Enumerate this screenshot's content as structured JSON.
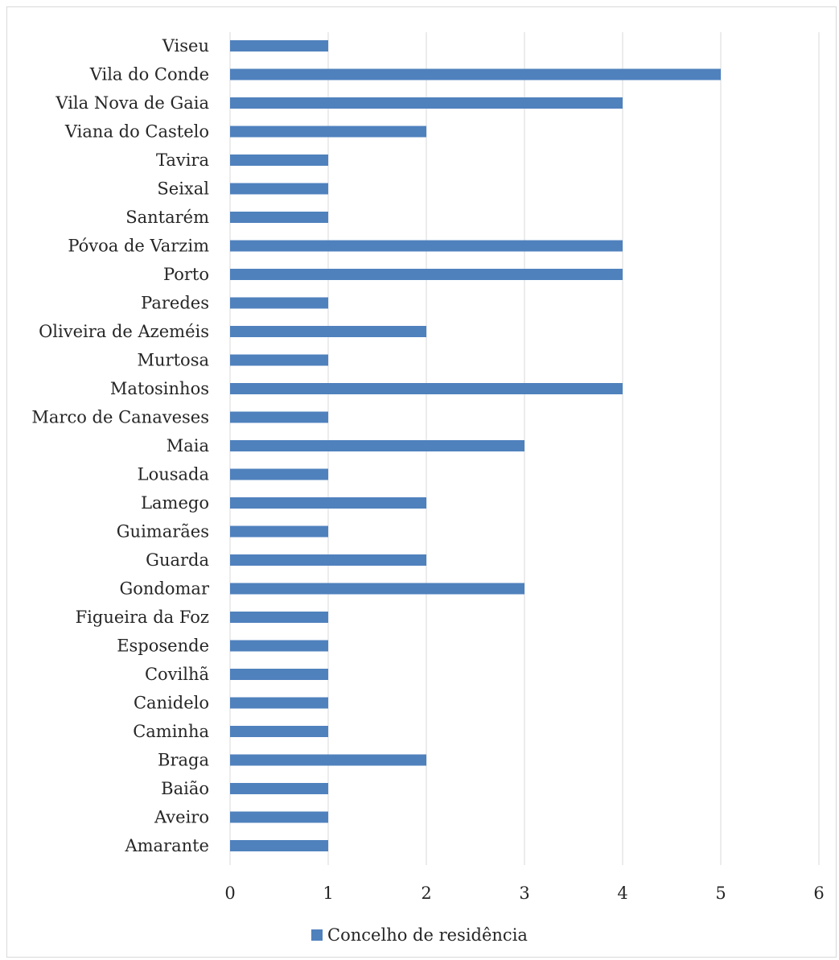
{
  "chart_data": {
    "type": "bar",
    "orientation": "horizontal",
    "title": "",
    "xlabel": "",
    "ylabel": "",
    "categories": [
      "Viseu",
      "Vila do Conde",
      "Vila Nova de Gaia",
      "Viana do Castelo",
      "Tavira",
      "Seixal",
      "Santarém",
      "Póvoa de Varzim",
      "Porto",
      "Paredes",
      "Oliveira de Azeméis",
      "Murtosa",
      "Matosinhos",
      "Marco de Canaveses",
      "Maia",
      "Lousada",
      "Lamego",
      "Guimarães",
      "Guarda",
      "Gondomar",
      "Figueira da Foz",
      "Esposende",
      "Covilhã",
      "Canidelo",
      "Caminha",
      "Braga",
      "Baião",
      "Aveiro",
      "Amarante"
    ],
    "series": [
      {
        "name": "Concelho de residência",
        "color": "#4f81bd",
        "values": [
          1,
          5,
          4,
          2,
          1,
          1,
          1,
          4,
          4,
          1,
          2,
          1,
          4,
          1,
          3,
          1,
          2,
          1,
          2,
          3,
          1,
          1,
          1,
          1,
          1,
          2,
          1,
          1,
          1
        ]
      }
    ],
    "xlim": [
      0,
      6
    ],
    "xticks": [
      "0",
      "1",
      "2",
      "3",
      "4",
      "5",
      "6"
    ],
    "grid": "vertical",
    "gridColor": "#d9d9d9",
    "legend": "bottom"
  }
}
